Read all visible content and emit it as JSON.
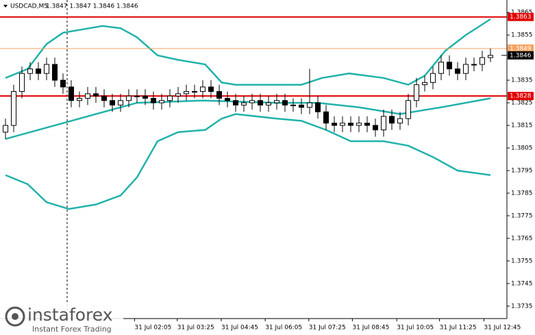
{
  "chart_data": {
    "type": "candlestick",
    "title": "USDCAD,M5",
    "ohlc_text": "1.3847 1.3847 1.3846 1.3846",
    "ohlc": {
      "open": [
        1.3812,
        1.3815,
        1.383,
        1.3838,
        1.384,
        1.3838,
        1.3842,
        1.3835,
        1.3832,
        1.3826,
        1.3827,
        1.3829,
        1.3828,
        1.3826,
        1.3824,
        1.3826,
        1.3828,
        1.3828,
        1.3827,
        1.3825,
        1.3826,
        1.3828,
        1.3829,
        1.383,
        1.383,
        1.3832,
        1.383,
        1.3827,
        1.3826,
        1.3824,
        1.3825,
        1.3826,
        1.3824,
        1.3825,
        1.3826,
        1.3824,
        1.3824,
        1.3823,
        1.3825,
        1.3821,
        1.3816,
        1.3815,
        1.3816,
        1.3815,
        1.3816,
        1.3815,
        1.3813,
        1.3819,
        1.3816,
        1.3818,
        1.3826,
        1.3833,
        1.3834,
        1.3838,
        1.3843,
        1.384,
        1.3838,
        1.3842,
        1.3842,
        1.3845
      ],
      "high": [
        1.3818,
        1.3833,
        1.3841,
        1.3843,
        1.3843,
        1.3845,
        1.3845,
        1.3838,
        1.3835,
        1.383,
        1.3832,
        1.3832,
        1.3831,
        1.3829,
        1.3829,
        1.3831,
        1.3831,
        1.3831,
        1.383,
        1.3829,
        1.3831,
        1.3832,
        1.3833,
        1.3833,
        1.3835,
        1.3835,
        1.3833,
        1.383,
        1.3829,
        1.3828,
        1.3829,
        1.3829,
        1.3828,
        1.3829,
        1.3829,
        1.3827,
        1.3827,
        1.384,
        1.3828,
        1.3824,
        1.3819,
        1.3819,
        1.3819,
        1.3819,
        1.3819,
        1.3818,
        1.3822,
        1.3822,
        1.3821,
        1.3829,
        1.3836,
        1.3837,
        1.3841,
        1.3846,
        1.3846,
        1.3843,
        1.3845,
        1.3845,
        1.3848,
        1.3849
      ],
      "low": [
        1.3809,
        1.3812,
        1.3827,
        1.3835,
        1.3835,
        1.3835,
        1.3832,
        1.3829,
        1.3823,
        1.3823,
        1.3824,
        1.3825,
        1.3823,
        1.3821,
        1.3821,
        1.3823,
        1.3825,
        1.3824,
        1.3822,
        1.3822,
        1.3823,
        1.3825,
        1.3826,
        1.3827,
        1.3827,
        1.3827,
        1.3824,
        1.3823,
        1.3821,
        1.3821,
        1.3822,
        1.3821,
        1.3821,
        1.3822,
        1.3821,
        1.3821,
        1.382,
        1.382,
        1.3818,
        1.3813,
        1.3812,
        1.3812,
        1.3812,
        1.3812,
        1.3812,
        1.381,
        1.381,
        1.3813,
        1.3813,
        1.3815,
        1.3823,
        1.383,
        1.3831,
        1.3835,
        1.3837,
        1.3835,
        1.3835,
        1.3839,
        1.3839,
        1.3843
      ],
      "close": [
        1.3815,
        1.383,
        1.3838,
        1.384,
        1.3838,
        1.3842,
        1.3835,
        1.3832,
        1.3826,
        1.3827,
        1.3829,
        1.3828,
        1.3826,
        1.3824,
        1.3826,
        1.3828,
        1.3828,
        1.3827,
        1.3825,
        1.3826,
        1.3828,
        1.3829,
        1.383,
        1.383,
        1.3832,
        1.383,
        1.3827,
        1.3826,
        1.3824,
        1.3825,
        1.3826,
        1.3824,
        1.3825,
        1.3826,
        1.3824,
        1.3824,
        1.3823,
        1.3825,
        1.3821,
        1.3816,
        1.3815,
        1.3816,
        1.3815,
        1.3816,
        1.3815,
        1.3813,
        1.3819,
        1.3816,
        1.3818,
        1.3826,
        1.3833,
        1.3834,
        1.3838,
        1.3843,
        1.384,
        1.3838,
        1.3842,
        1.3842,
        1.3845,
        1.3846
      ]
    },
    "bands": [
      {
        "color": "#20b2aa",
        "x": [
          0,
          2.7,
          5,
          7,
          11.8,
          14,
          16,
          18.5,
          21,
          24.3,
          26.3,
          28,
          36,
          38.5,
          41.8,
          46,
          49,
          51,
          53.5,
          56,
          59
        ],
        "values": [
          1.3836,
          1.384,
          1.3851,
          1.3856,
          1.3859,
          1.3858,
          1.3854,
          1.3846,
          1.3844,
          1.3842,
          1.3834,
          1.3833,
          1.3833,
          1.3836,
          1.3838,
          1.3836,
          1.3833,
          1.3837,
          1.3848,
          1.3855,
          1.3862
        ]
      },
      {
        "color": "#20b2aa",
        "x": [
          0,
          8,
          16,
          24,
          33,
          38,
          43,
          48,
          53,
          59
        ],
        "values": [
          1.3809,
          1.3817,
          1.3825,
          1.3826,
          1.3825,
          1.3825,
          1.3823,
          1.382,
          1.3823,
          1.3827
        ]
      },
      {
        "color": "#20b2aa",
        "x": [
          0,
          2.7,
          5,
          7.7,
          11,
          14,
          16,
          18.5,
          21,
          24.3,
          26.3,
          28,
          33,
          36,
          39,
          42,
          46,
          49,
          52,
          55,
          59
        ],
        "values": [
          1.3793,
          1.3789,
          1.3781,
          1.3778,
          1.378,
          1.3784,
          1.3792,
          1.3808,
          1.3812,
          1.3813,
          1.3818,
          1.382,
          1.3818,
          1.3817,
          1.3813,
          1.3808,
          1.3808,
          1.3806,
          1.3801,
          1.3795,
          1.3793
        ]
      }
    ],
    "levels": [
      {
        "value": 1.3863,
        "color": "#e00000"
      },
      {
        "value": 1.3849,
        "color": "#f4a460"
      },
      {
        "value": 1.3828,
        "color": "#e00000"
      }
    ],
    "last_price": 1.3846,
    "ylim": [
      1.37295,
      1.38705
    ],
    "yticks": [
      1.3865,
      1.3855,
      1.3835,
      1.3825,
      1.3815,
      1.3805,
      1.3795,
      1.3785,
      1.3775,
      1.3765,
      1.3755,
      1.3745,
      1.3735
    ],
    "xlim": [
      -0.667,
      61
    ],
    "xticks": [
      {
        "value": 15.7,
        "label": "31 Jul 02:05"
      },
      {
        "value": 20.9,
        "label": "31 Jul 03:25"
      },
      {
        "value": 26.25,
        "label": "31 Jul 04:45"
      },
      {
        "value": 31.6,
        "label": "31 Jul 06:05"
      },
      {
        "value": 36.9,
        "label": "31 Jul 07:25"
      },
      {
        "value": 42.2,
        "label": "31 Jul 08:45"
      },
      {
        "value": 47.6,
        "label": "31 Jul 10:05"
      },
      {
        "value": 52.8,
        "label": "31 Jul 11:25"
      },
      {
        "value": 58.2,
        "label": "31 Jul 12:45"
      }
    ],
    "watermark": {
      "brand": "instaforex",
      "tagline": "Instant Forex Trading"
    }
  }
}
